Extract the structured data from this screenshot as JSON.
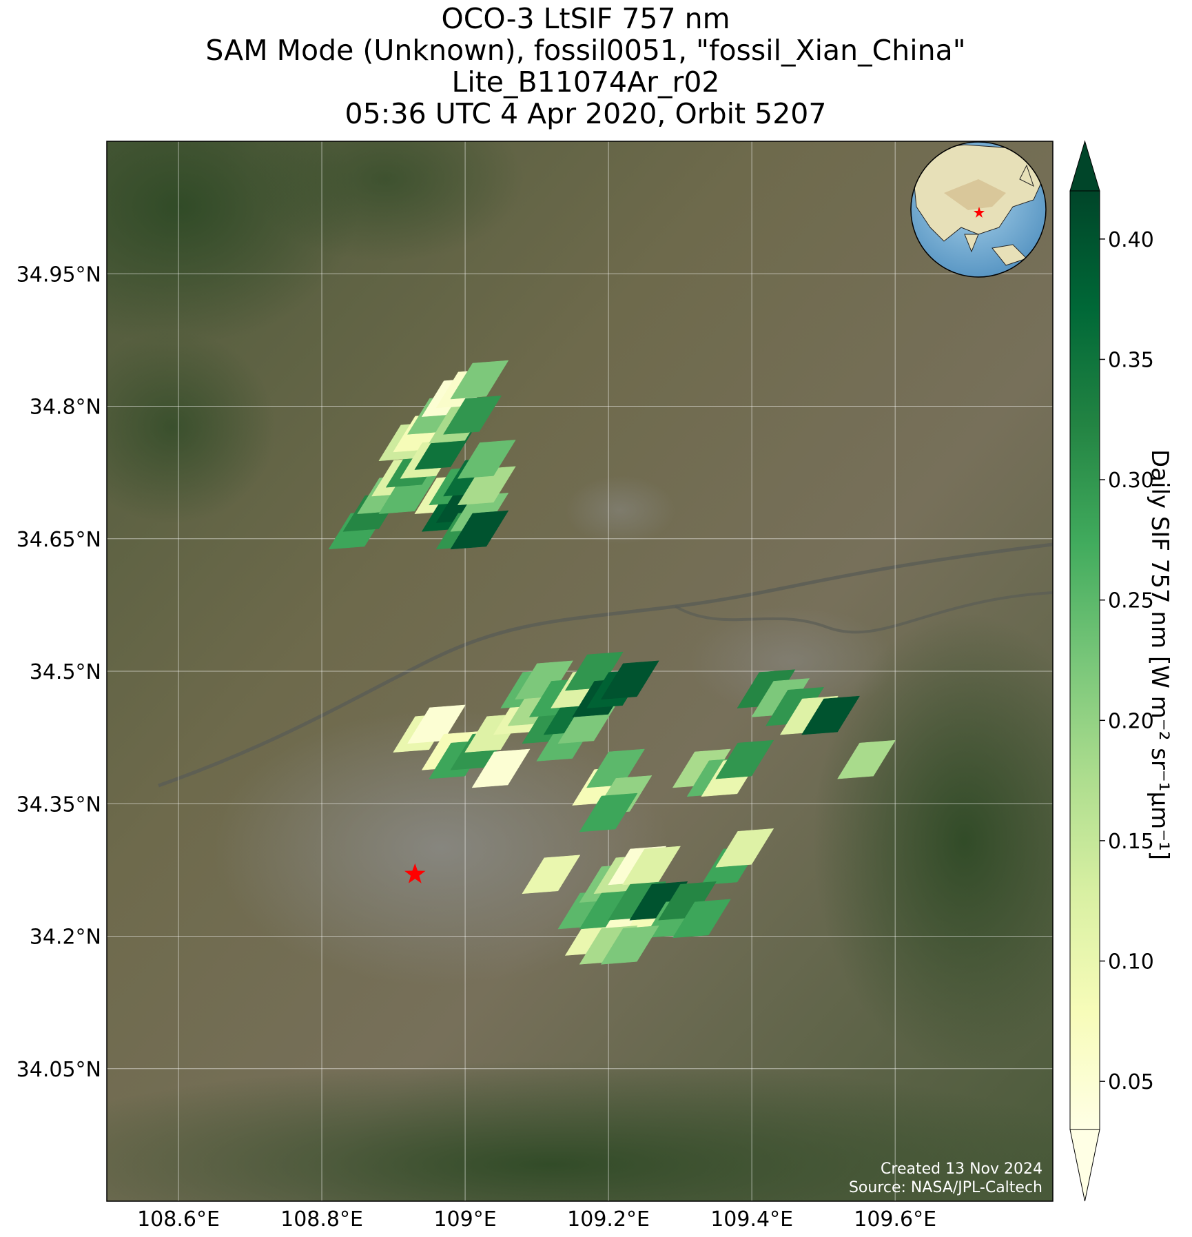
{
  "title": {
    "line1": "OCO-3 LtSIF 757 nm",
    "line2": "SAM Mode (Unknown), fossil0051, \"fossil_Xian_China\"",
    "line3": "Lite_B11074Ar_r02",
    "line4": "05:36 UTC 4 Apr 2020, Orbit 5207"
  },
  "map": {
    "lon_range": [
      108.5,
      109.82
    ],
    "lat_range": [
      33.9,
      35.1
    ],
    "lon_ticks": [
      {
        "value": 108.6,
        "label": "108.6°E"
      },
      {
        "value": 108.8,
        "label": "108.8°E"
      },
      {
        "value": 109.0,
        "label": "109°E"
      },
      {
        "value": 109.2,
        "label": "109.2°E"
      },
      {
        "value": 109.4,
        "label": "109.4°E"
      },
      {
        "value": 109.6,
        "label": "109.6°E"
      }
    ],
    "lat_ticks": [
      {
        "value": 34.95,
        "label": "34.95°N"
      },
      {
        "value": 34.8,
        "label": "34.8°N"
      },
      {
        "value": 34.65,
        "label": "34.65°N"
      },
      {
        "value": 34.5,
        "label": "34.5°N"
      },
      {
        "value": 34.35,
        "label": "34.35°N"
      },
      {
        "value": 34.2,
        "label": "34.2°N"
      },
      {
        "value": 34.05,
        "label": "34.05°N"
      }
    ],
    "gridlines": true,
    "basemap": "satellite imagery",
    "target_marker": {
      "lon": 108.93,
      "lat": 34.27,
      "symbol": "star",
      "color": "#ff0000"
    },
    "inset_globe": {
      "position": "top-right",
      "marker_color": "#ff0000"
    }
  },
  "colorbar": {
    "label": "Daily SIF 757 nm [W m⁻² sr⁻¹μm⁻¹]",
    "colormap": "YlGn",
    "range": [
      0.03,
      0.42
    ],
    "ticks": [
      {
        "value": 0.4,
        "label": "0.40"
      },
      {
        "value": 0.35,
        "label": "0.35"
      },
      {
        "value": 0.3,
        "label": "0.30"
      },
      {
        "value": 0.25,
        "label": "0.25"
      },
      {
        "value": 0.2,
        "label": "0.20"
      },
      {
        "value": 0.15,
        "label": "0.15"
      },
      {
        "value": 0.1,
        "label": "0.10"
      },
      {
        "value": 0.05,
        "label": "0.05"
      }
    ],
    "extend": "both"
  },
  "credit": {
    "created": "Created 13 Nov 2024",
    "source": "Source: NASA/JPL-Caltech"
  },
  "chart_data": {
    "type": "heatmap",
    "description_units": "soundings as lon/lat center with SIF value",
    "soundings": [
      {
        "lon": 108.85,
        "lat": 34.66,
        "v": 0.28
      },
      {
        "lon": 108.87,
        "lat": 34.68,
        "v": 0.32
      },
      {
        "lon": 108.89,
        "lat": 34.7,
        "v": 0.22
      },
      {
        "lon": 108.91,
        "lat": 34.72,
        "v": 0.12
      },
      {
        "lon": 108.92,
        "lat": 34.7,
        "v": 0.25
      },
      {
        "lon": 108.93,
        "lat": 34.73,
        "v": 0.3
      },
      {
        "lon": 108.92,
        "lat": 34.76,
        "v": 0.14
      },
      {
        "lon": 108.94,
        "lat": 34.77,
        "v": 0.08
      },
      {
        "lon": 108.95,
        "lat": 34.74,
        "v": 0.12
      },
      {
        "lon": 108.96,
        "lat": 34.79,
        "v": 0.22
      },
      {
        "lon": 108.97,
        "lat": 34.75,
        "v": 0.35
      },
      {
        "lon": 108.98,
        "lat": 34.81,
        "v": 0.05
      },
      {
        "lon": 108.99,
        "lat": 34.78,
        "v": 0.18
      },
      {
        "lon": 109.0,
        "lat": 34.82,
        "v": 0.06
      },
      {
        "lon": 109.01,
        "lat": 34.79,
        "v": 0.3
      },
      {
        "lon": 109.02,
        "lat": 34.83,
        "v": 0.22
      },
      {
        "lon": 108.97,
        "lat": 34.7,
        "v": 0.1
      },
      {
        "lon": 108.98,
        "lat": 34.68,
        "v": 0.38
      },
      {
        "lon": 108.99,
        "lat": 34.71,
        "v": 0.28
      },
      {
        "lon": 109.0,
        "lat": 34.69,
        "v": 0.4
      },
      {
        "lon": 109.01,
        "lat": 34.72,
        "v": 0.36
      },
      {
        "lon": 109.0,
        "lat": 34.66,
        "v": 0.3
      },
      {
        "lon": 109.02,
        "lat": 34.68,
        "v": 0.22
      },
      {
        "lon": 109.03,
        "lat": 34.71,
        "v": 0.18
      },
      {
        "lon": 109.03,
        "lat": 34.74,
        "v": 0.24
      },
      {
        "lon": 109.02,
        "lat": 34.66,
        "v": 0.4
      },
      {
        "lon": 108.94,
        "lat": 34.43,
        "v": 0.1
      },
      {
        "lon": 108.96,
        "lat": 34.44,
        "v": 0.05
      },
      {
        "lon": 108.98,
        "lat": 34.41,
        "v": 0.08
      },
      {
        "lon": 108.99,
        "lat": 34.4,
        "v": 0.28
      },
      {
        "lon": 109.02,
        "lat": 34.41,
        "v": 0.3
      },
      {
        "lon": 109.04,
        "lat": 34.43,
        "v": 0.12
      },
      {
        "lon": 109.05,
        "lat": 34.39,
        "v": 0.05
      },
      {
        "lon": 109.08,
        "lat": 34.45,
        "v": 0.1
      },
      {
        "lon": 109.09,
        "lat": 34.48,
        "v": 0.25
      },
      {
        "lon": 109.1,
        "lat": 34.46,
        "v": 0.18
      },
      {
        "lon": 109.11,
        "lat": 34.49,
        "v": 0.22
      },
      {
        "lon": 109.12,
        "lat": 34.44,
        "v": 0.3
      },
      {
        "lon": 109.13,
        "lat": 34.47,
        "v": 0.28
      },
      {
        "lon": 109.14,
        "lat": 34.42,
        "v": 0.25
      },
      {
        "lon": 109.15,
        "lat": 34.45,
        "v": 0.35
      },
      {
        "lon": 109.16,
        "lat": 34.48,
        "v": 0.12
      },
      {
        "lon": 109.17,
        "lat": 34.44,
        "v": 0.22
      },
      {
        "lon": 109.18,
        "lat": 34.5,
        "v": 0.3
      },
      {
        "lon": 109.19,
        "lat": 34.47,
        "v": 0.4
      },
      {
        "lon": 109.21,
        "lat": 34.48,
        "v": 0.38
      },
      {
        "lon": 109.23,
        "lat": 34.49,
        "v": 0.4
      },
      {
        "lon": 109.19,
        "lat": 34.37,
        "v": 0.08
      },
      {
        "lon": 109.21,
        "lat": 34.39,
        "v": 0.25
      },
      {
        "lon": 109.22,
        "lat": 34.36,
        "v": 0.2
      },
      {
        "lon": 109.2,
        "lat": 34.34,
        "v": 0.28
      },
      {
        "lon": 109.33,
        "lat": 34.39,
        "v": 0.18
      },
      {
        "lon": 109.35,
        "lat": 34.38,
        "v": 0.25
      },
      {
        "lon": 109.37,
        "lat": 34.38,
        "v": 0.1
      },
      {
        "lon": 109.39,
        "lat": 34.4,
        "v": 0.3
      },
      {
        "lon": 109.42,
        "lat": 34.48,
        "v": 0.32
      },
      {
        "lon": 109.44,
        "lat": 34.47,
        "v": 0.22
      },
      {
        "lon": 109.46,
        "lat": 34.46,
        "v": 0.3
      },
      {
        "lon": 109.48,
        "lat": 34.45,
        "v": 0.12
      },
      {
        "lon": 109.51,
        "lat": 34.45,
        "v": 0.4
      },
      {
        "lon": 109.56,
        "lat": 34.4,
        "v": 0.18
      },
      {
        "lon": 109.37,
        "lat": 34.28,
        "v": 0.28
      },
      {
        "lon": 109.39,
        "lat": 34.3,
        "v": 0.12
      },
      {
        "lon": 109.12,
        "lat": 34.27,
        "v": 0.1
      },
      {
        "lon": 109.17,
        "lat": 34.23,
        "v": 0.25
      },
      {
        "lon": 109.2,
        "lat": 34.26,
        "v": 0.22
      },
      {
        "lon": 109.22,
        "lat": 34.27,
        "v": 0.15
      },
      {
        "lon": 109.24,
        "lat": 34.28,
        "v": 0.05
      },
      {
        "lon": 109.26,
        "lat": 34.28,
        "v": 0.12
      },
      {
        "lon": 109.18,
        "lat": 34.2,
        "v": 0.1
      },
      {
        "lon": 109.2,
        "lat": 34.23,
        "v": 0.28
      },
      {
        "lon": 109.22,
        "lat": 34.21,
        "v": 0.06
      },
      {
        "lon": 109.24,
        "lat": 34.24,
        "v": 0.3
      },
      {
        "lon": 109.26,
        "lat": 34.22,
        "v": 0.08
      },
      {
        "lon": 109.27,
        "lat": 34.24,
        "v": 0.4
      },
      {
        "lon": 109.29,
        "lat": 34.22,
        "v": 0.26
      },
      {
        "lon": 109.31,
        "lat": 34.24,
        "v": 0.32
      },
      {
        "lon": 109.33,
        "lat": 34.22,
        "v": 0.28
      },
      {
        "lon": 109.2,
        "lat": 34.19,
        "v": 0.18
      },
      {
        "lon": 109.23,
        "lat": 34.19,
        "v": 0.22
      }
    ]
  }
}
